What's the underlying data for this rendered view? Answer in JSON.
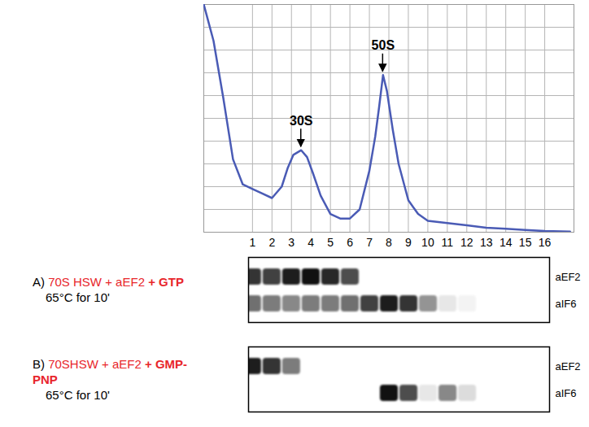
{
  "chart_data": {
    "type": "line",
    "x": [
      -1.5,
      -1.0,
      -0.5,
      0,
      0.5,
      1,
      1.5,
      2,
      2.5,
      2.8,
      3.1,
      3.5,
      3.8,
      4.1,
      4.5,
      5,
      5.5,
      6,
      6.5,
      7,
      7.3,
      7.5,
      7.7,
      7.9,
      8.2,
      8.5,
      9,
      9.5,
      10,
      11,
      12,
      13,
      14,
      15,
      16,
      17.3
    ],
    "values": [
      100,
      84,
      59,
      32,
      21,
      19,
      17,
      15,
      20,
      28,
      34,
      36,
      33,
      26,
      16,
      8,
      6,
      6,
      10,
      27,
      42,
      55,
      69,
      62,
      45,
      30,
      14,
      8,
      5,
      4,
      3,
      2,
      1.5,
      1,
      0.5,
      0.3
    ],
    "color": "#4a5bb5",
    "xlim": [
      -1.5,
      17.5
    ],
    "ylim": [
      0,
      100
    ],
    "xticks": [
      1,
      2,
      3,
      4,
      5,
      6,
      7,
      8,
      9,
      10,
      11,
      12,
      13,
      14,
      15,
      16
    ],
    "yticks": [
      0,
      10,
      20,
      30,
      40,
      50,
      60,
      70,
      80,
      90,
      100
    ],
    "grid": true,
    "tick_labels": "x",
    "annotations": [
      {
        "text": "30S",
        "x": 3.5,
        "y": 36
      },
      {
        "text": "50S",
        "x": 7.7,
        "y": 69
      }
    ]
  },
  "blots": [
    {
      "label": "A)",
      "condition": "70S HSW + aEF2",
      "nucleotide": "+ GTP",
      "treatment": "65°C for 10'",
      "color": "#e8262b",
      "fractions": [
        1,
        2,
        3,
        4,
        5,
        6,
        7,
        8,
        9,
        10,
        11,
        12,
        13,
        14,
        15,
        16
      ],
      "xlim": [
        0.8,
        16.2
      ],
      "bands": [
        {
          "name": "aEF2",
          "values": [
            0.85,
            0.8,
            0.95,
            1,
            0.9,
            0.75,
            0,
            0,
            0,
            0,
            0,
            0,
            0,
            0,
            0,
            0
          ]
        },
        {
          "name": "aIF6",
          "values": [
            0.6,
            0.55,
            0.5,
            0.55,
            0.55,
            0.6,
            0.8,
            0.95,
            0.85,
            0.45,
            0.1,
            0.05,
            0,
            0,
            0,
            0
          ]
        }
      ]
    },
    {
      "label": "B)",
      "condition": "70SHSW + aEF2",
      "nucleotide": "+ GMP-PNP",
      "treatment": "65°C for 10'",
      "color": "#e8262b",
      "fractions": [
        1,
        2,
        3,
        4,
        5,
        6,
        7,
        8,
        9,
        10,
        11,
        12,
        13,
        14,
        15,
        16
      ],
      "xlim": [
        0.8,
        16.2
      ],
      "bands": [
        {
          "name": "aEF2",
          "values": [
            0.95,
            0.85,
            0.55,
            0,
            0,
            0,
            0,
            0,
            0,
            0,
            0,
            0,
            0,
            0,
            0,
            0
          ]
        },
        {
          "name": "aIF6",
          "values": [
            0,
            0,
            0,
            0,
            0,
            0,
            0,
            1,
            0.75,
            0.1,
            0.5,
            0.15,
            0,
            0,
            0,
            0
          ]
        }
      ]
    }
  ]
}
